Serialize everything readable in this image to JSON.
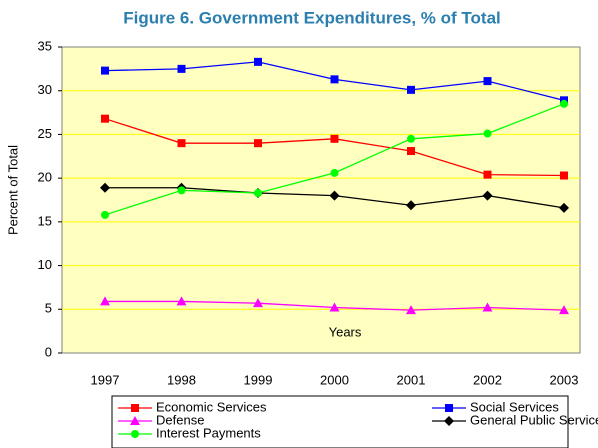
{
  "chart_data": {
    "type": "line",
    "title": "Figure 6.  Government Expenditures, % of Total",
    "x_label": "Years",
    "y_label": "Percent of Total",
    "categories": [
      "1997",
      "1998",
      "1999",
      "2000",
      "2001",
      "2002",
      "2003"
    ],
    "series": [
      {
        "name": "Economic Services",
        "color": "#ff0000",
        "marker": "square",
        "values": [
          26.8,
          24.0,
          24.0,
          24.5,
          23.1,
          20.4,
          20.3
        ]
      },
      {
        "name": "Social Services",
        "color": "#0000ff",
        "marker": "square",
        "values": [
          32.3,
          32.5,
          33.3,
          31.3,
          30.1,
          31.1,
          28.9
        ]
      },
      {
        "name": "Defense",
        "color": "#ff00ff",
        "marker": "triangle",
        "values": [
          5.9,
          5.9,
          5.7,
          5.2,
          4.9,
          5.2,
          4.9
        ]
      },
      {
        "name": "General Public Services",
        "color": "#000000",
        "marker": "diamond",
        "values": [
          18.9,
          18.9,
          18.3,
          18.0,
          16.9,
          18.0,
          16.6
        ]
      },
      {
        "name": "Interest Payments",
        "color": "#00ff00",
        "marker": "circle",
        "values": [
          15.8,
          18.6,
          18.3,
          20.6,
          24.5,
          25.1,
          28.5
        ]
      }
    ],
    "ylim": [
      0,
      35
    ],
    "yticks": [
      0,
      5,
      10,
      15,
      20,
      25,
      30,
      35
    ],
    "grid": true,
    "legend": "bottom"
  }
}
